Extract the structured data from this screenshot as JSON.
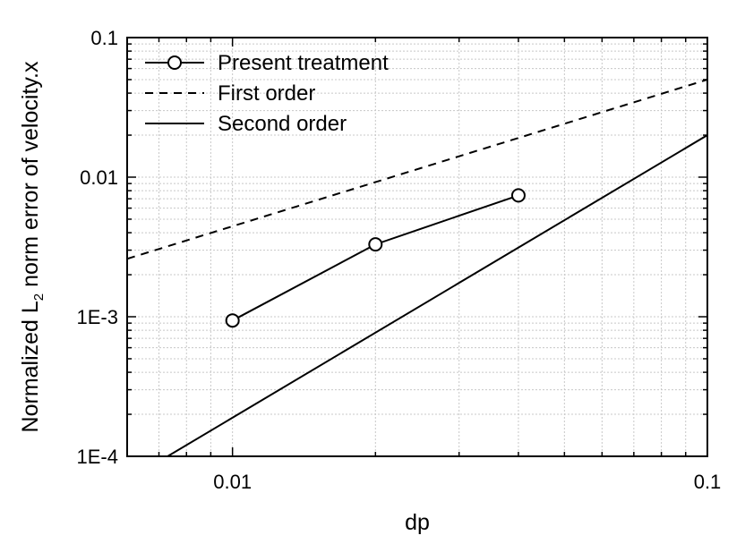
{
  "chart_data": {
    "type": "line",
    "title": "",
    "xlabel": "dp",
    "ylabel": {
      "prefix": "Normalized L",
      "subscript": "2",
      "suffix": " norm error of velocity.x"
    },
    "xscale": "log",
    "yscale": "log",
    "xlim": [
      0.006,
      0.1
    ],
    "ylim": [
      0.0001,
      0.1
    ],
    "xticks": [
      {
        "value": 0.01,
        "label": "0.01"
      },
      {
        "value": 0.1,
        "label": "0.1"
      }
    ],
    "yticks": [
      {
        "value": 0.0001,
        "label": "1E-4"
      },
      {
        "value": 0.001,
        "label": "1E-3"
      },
      {
        "value": 0.01,
        "label": "0.01"
      },
      {
        "value": 0.1,
        "label": "0.1"
      }
    ],
    "grid": true,
    "legend": "top-left",
    "series": [
      {
        "name": "Present treatment",
        "style": "solid-circle-markers",
        "x": [
          0.01,
          0.02,
          0.04
        ],
        "y": [
          0.00094,
          0.0033,
          0.0074
        ]
      },
      {
        "name": "First order",
        "style": "dashed",
        "x": [
          0.006,
          0.1
        ],
        "y": [
          0.0026,
          0.05
        ]
      },
      {
        "name": "Second order",
        "style": "solid",
        "x": [
          0.0073,
          0.1
        ],
        "y": [
          0.0001,
          0.02
        ]
      }
    ]
  }
}
